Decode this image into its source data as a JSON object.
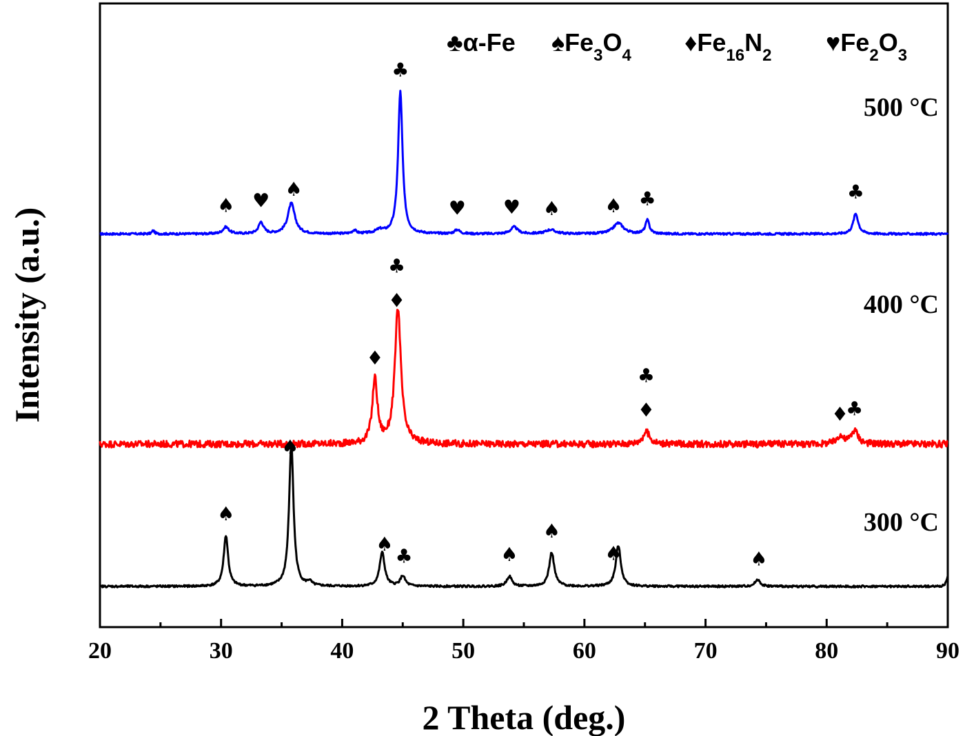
{
  "chart_data": {
    "type": "line",
    "title": "",
    "xlabel": "2 Theta (deg.)",
    "ylabel": "Intensity (a.u.)",
    "xlim": [
      20,
      90
    ],
    "xticks": [
      20,
      30,
      40,
      50,
      60,
      70,
      80,
      90
    ],
    "yticks_shown": false,
    "grid": false,
    "legend": {
      "placement": "top-right",
      "entries": [
        {
          "symbol": "club",
          "glyph": "♣",
          "text": "α-Fe"
        },
        {
          "symbol": "spade",
          "glyph": "♠",
          "text": "Fe",
          "subs": [
            [
              "3",
              "O"
            ],
            [
              "4",
              ""
            ]
          ]
        },
        {
          "symbol": "diamond",
          "glyph": "♦",
          "text": "Fe",
          "subs": [
            [
              "16",
              "N"
            ],
            [
              "2",
              ""
            ]
          ]
        },
        {
          "symbol": "heart",
          "glyph": "♥",
          "text": "Fe",
          "subs": [
            [
              "2",
              "O"
            ],
            [
              "3",
              ""
            ]
          ]
        }
      ]
    },
    "series": [
      {
        "name": "500 °C",
        "color": "#0000ff",
        "baseline": 5.8,
        "peaks": [
          [
            24.4,
            0.05,
            0.12
          ],
          [
            30.4,
            0.1,
            0.3
          ],
          [
            33.3,
            0.17,
            0.25
          ],
          [
            35.8,
            0.45,
            0.35
          ],
          [
            41.0,
            0.05,
            0.2
          ],
          [
            43.1,
            0.05,
            0.4
          ],
          [
            44.8,
            2.1,
            0.22
          ],
          [
            49.5,
            0.06,
            0.25
          ],
          [
            54.2,
            0.1,
            0.35
          ],
          [
            57.2,
            0.06,
            0.5
          ],
          [
            62.8,
            0.16,
            0.5
          ],
          [
            65.2,
            0.2,
            0.2
          ],
          [
            82.4,
            0.3,
            0.25
          ]
        ],
        "noise": 0.015,
        "markers": [
          [
            30.4,
            "spade"
          ],
          [
            33.3,
            "heart"
          ],
          [
            36.0,
            "spade"
          ],
          [
            44.8,
            "club"
          ],
          [
            49.5,
            "heart"
          ],
          [
            54.0,
            "heart"
          ],
          [
            57.3,
            "spade"
          ],
          [
            62.4,
            "spade"
          ],
          [
            65.2,
            "club"
          ],
          [
            82.4,
            "club"
          ]
        ]
      },
      {
        "name": "400 °C",
        "color": "#ff0000",
        "baseline": 2.7,
        "peaks": [
          [
            42.7,
            0.95,
            0.25
          ],
          [
            44.6,
            2.0,
            0.3
          ],
          [
            65.1,
            0.18,
            0.35
          ],
          [
            81.1,
            0.12,
            0.3
          ],
          [
            82.3,
            0.2,
            0.35
          ]
        ],
        "noise": 0.05,
        "markers": [
          [
            42.7,
            "diamond"
          ],
          [
            44.5,
            "diamond"
          ],
          [
            44.5,
            "club"
          ],
          [
            65.1,
            "diamond"
          ],
          [
            65.1,
            "club"
          ],
          [
            81.1,
            "diamond"
          ],
          [
            82.3,
            "club"
          ]
        ]
      },
      {
        "name": "300 °C",
        "color": "#000000",
        "baseline": 0.6,
        "peaks": [
          [
            30.4,
            0.75,
            0.22
          ],
          [
            35.8,
            2.1,
            0.22
          ],
          [
            37.3,
            0.06,
            0.2
          ],
          [
            43.3,
            0.5,
            0.25
          ],
          [
            45.0,
            0.15,
            0.25
          ],
          [
            53.8,
            0.15,
            0.25
          ],
          [
            57.3,
            0.5,
            0.25
          ],
          [
            62.8,
            0.6,
            0.25
          ],
          [
            74.3,
            0.1,
            0.25
          ],
          [
            90.0,
            0.15,
            0.12
          ]
        ],
        "noise": 0.015,
        "markers": [
          [
            30.4,
            "spade"
          ],
          [
            35.7,
            "spade"
          ],
          [
            43.5,
            "spade"
          ],
          [
            45.1,
            "club"
          ],
          [
            53.8,
            "spade"
          ],
          [
            57.3,
            "spade"
          ],
          [
            62.4,
            "spade"
          ],
          [
            74.4,
            "spade"
          ]
        ]
      }
    ]
  }
}
